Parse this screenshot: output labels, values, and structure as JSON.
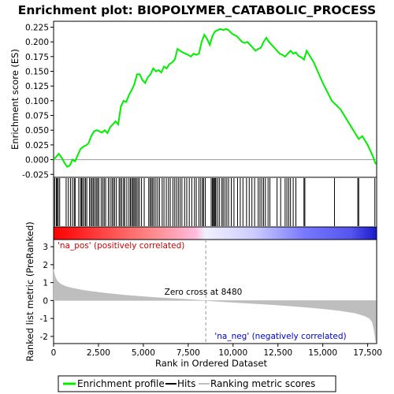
{
  "chart_data": [
    {
      "type": "line",
      "title": "Enrichment plot: BIOPOLYMER_CATABOLIC_PROCESS",
      "ylabel": "Enrichment score (ES)",
      "xlim": [
        0,
        18000
      ],
      "ylim": [
        -0.03,
        0.235
      ],
      "y_ticks": [
        "-0.025",
        "0.000",
        "0.025",
        "0.050",
        "0.075",
        "0.100",
        "0.125",
        "0.150",
        "0.175",
        "0.200",
        "0.225"
      ],
      "y_tick_values": [
        -0.025,
        0.0,
        0.025,
        0.05,
        0.075,
        0.1,
        0.125,
        0.15,
        0.175,
        0.2,
        0.225
      ],
      "grid": false,
      "series": [
        {
          "name": "Enrichment profile",
          "color": "#00ee00",
          "x": [
            0,
            150,
            300,
            450,
            600,
            750,
            900,
            1050,
            1200,
            1350,
            1500,
            1650,
            1800,
            1950,
            2100,
            2250,
            2400,
            2550,
            2700,
            2850,
            3000,
            3150,
            3300,
            3450,
            3600,
            3750,
            3900,
            4050,
            4200,
            4350,
            4500,
            4650,
            4800,
            4950,
            5100,
            5250,
            5400,
            5550,
            5700,
            5850,
            6000,
            6150,
            6300,
            6450,
            6600,
            6750,
            6900,
            7050,
            7200,
            7350,
            7500,
            7650,
            7800,
            7950,
            8100,
            8250,
            8400,
            8550,
            8700,
            8850,
            9000,
            9150,
            9300,
            9450,
            9600,
            9750,
            9900,
            10050,
            10200,
            10350,
            10500,
            10650,
            10800,
            10950,
            11100,
            11250,
            11400,
            11550,
            11700,
            11850,
            12000,
            12150,
            12300,
            12450,
            12600,
            12750,
            12900,
            13050,
            13200,
            13350,
            13500,
            13650,
            13800,
            13950,
            14100,
            14500,
            15000,
            15500,
            16000,
            16500,
            17000,
            17200,
            17500,
            17800,
            17950
          ],
          "y": [
            0.0,
            0.005,
            0.01,
            0.003,
            -0.005,
            -0.012,
            -0.01,
            0.0,
            -0.003,
            0.008,
            0.018,
            0.022,
            0.024,
            0.028,
            0.04,
            0.048,
            0.05,
            0.048,
            0.046,
            0.05,
            0.045,
            0.055,
            0.06,
            0.065,
            0.06,
            0.09,
            0.1,
            0.098,
            0.11,
            0.118,
            0.128,
            0.145,
            0.145,
            0.135,
            0.13,
            0.14,
            0.145,
            0.155,
            0.15,
            0.152,
            0.148,
            0.158,
            0.155,
            0.162,
            0.165,
            0.17,
            0.188,
            0.185,
            0.182,
            0.18,
            0.178,
            0.175,
            0.18,
            0.178,
            0.18,
            0.2,
            0.212,
            0.205,
            0.195,
            0.21,
            0.218,
            0.22,
            0.222,
            0.22,
            0.222,
            0.22,
            0.215,
            0.212,
            0.21,
            0.205,
            0.2,
            0.198,
            0.2,
            0.195,
            0.19,
            0.185,
            0.188,
            0.19,
            0.2,
            0.207,
            0.2,
            0.195,
            0.19,
            0.185,
            0.18,
            0.178,
            0.175,
            0.18,
            0.185,
            0.18,
            0.182,
            0.176,
            0.174,
            0.17,
            0.185,
            0.165,
            0.13,
            0.1,
            0.085,
            0.06,
            0.035,
            0.04,
            0.025,
            0.005,
            -0.008
          ]
        }
      ]
    },
    {
      "type": "area",
      "xlabel": "Rank in Ordered Dataset",
      "ylabel": "Ranked list metric (PreRanked)",
      "xlim": [
        0,
        18000
      ],
      "ylim": [
        -2.4,
        3.4
      ],
      "x_ticks": [
        "0",
        "2,500",
        "5,000",
        "7,500",
        "10,000",
        "12,500",
        "15,000",
        "17,500"
      ],
      "x_tick_values": [
        0,
        2500,
        5000,
        7500,
        10000,
        12500,
        15000,
        17500
      ],
      "y_ticks": [
        "-2",
        "-1",
        "0",
        "1",
        "2",
        "3"
      ],
      "y_tick_values": [
        -2,
        -1,
        0,
        1,
        2,
        3
      ],
      "annotations": [
        "Zero cross at 8480",
        "'na_pos' (positively correlated)",
        "'na_neg' (negatively correlated)"
      ],
      "zero_cross": 8480,
      "series": [
        {
          "name": "Ranking metric scores",
          "color": "#bebebe",
          "x": [
            0,
            30,
            100,
            200,
            400,
            700,
            1000,
            1500,
            2000,
            3000,
            4000,
            5000,
            6000,
            7000,
            8000,
            8480,
            9000,
            10000,
            11000,
            12000,
            13000,
            14000,
            15000,
            16000,
            16800,
            17300,
            17600,
            17750,
            17850,
            17950
          ],
          "y": [
            1.75,
            1.55,
            1.3,
            1.1,
            0.92,
            0.78,
            0.7,
            0.6,
            0.52,
            0.4,
            0.3,
            0.22,
            0.15,
            0.09,
            0.03,
            0.0,
            -0.04,
            -0.1,
            -0.16,
            -0.22,
            -0.29,
            -0.37,
            -0.46,
            -0.57,
            -0.7,
            -0.85,
            -1.0,
            -1.2,
            -1.6,
            -2.3
          ]
        }
      ]
    }
  ],
  "hits": [
    60,
    150,
    200,
    260,
    340,
    700,
    820,
    940,
    1050,
    1150,
    1200,
    1400,
    1500,
    1560,
    1620,
    1700,
    1780,
    1850,
    2000,
    2080,
    2150,
    2220,
    2300,
    2380,
    2450,
    2520,
    2650,
    2740,
    2820,
    2900,
    3050,
    3150,
    3250,
    3320,
    3400,
    3500,
    3650,
    3720,
    3800,
    3900,
    3960,
    4080,
    4200,
    4280,
    4350,
    4420,
    4480,
    4550,
    4620,
    4700,
    4780,
    4900,
    5050,
    5300,
    5380,
    5450,
    5520,
    5600,
    5700,
    5800,
    5900,
    6050,
    6150,
    6280,
    6400,
    6500,
    6650,
    6750,
    6850,
    6950,
    7050,
    7150,
    7300,
    7420,
    7560,
    7700,
    7850,
    7950,
    8100,
    8200,
    8300,
    8350,
    8450,
    8780,
    8850,
    8900,
    8950,
    9000,
    9050,
    9150,
    9250,
    9380,
    9450,
    9550,
    9650,
    9750,
    9900,
    10050,
    10250,
    10400,
    10550,
    10750,
    10900,
    11050,
    11200,
    11400,
    11500,
    11600,
    11700,
    11800,
    11950,
    12050,
    12450,
    12650,
    12900,
    13000,
    13100,
    13200,
    13350,
    13500,
    13950,
    14000,
    15650,
    16950,
    17000,
    17900
  ],
  "colorbar": {
    "pos_color": "#ff0000",
    "neg_color": "#0000ff"
  },
  "legend": [
    {
      "label": "Enrichment profile",
      "color": "#00ee00",
      "kind": "line"
    },
    {
      "label": "Hits",
      "color": "#000000",
      "kind": "line"
    },
    {
      "label": "Ranking metric scores",
      "color": "#bebebe",
      "kind": "line"
    }
  ]
}
